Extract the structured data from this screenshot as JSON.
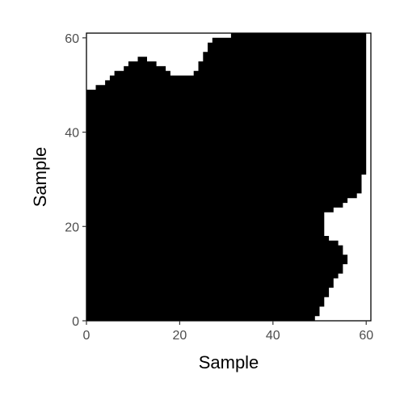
{
  "chart_data": {
    "type": "area",
    "description_of_shape": "filled black region bounded above and on the right",
    "xlabel": "Sample",
    "ylabel": "Sample",
    "xlim": [
      0,
      61
    ],
    "ylim": [
      0,
      61
    ],
    "x_ticks": [
      0,
      20,
      40,
      60
    ],
    "y_ticks": [
      0,
      20,
      40,
      60
    ],
    "x_tick_labels": [
      "0",
      "20",
      "40",
      "60"
    ],
    "y_tick_labels": [
      "0",
      "20",
      "40",
      "60"
    ],
    "grid": false,
    "fill_color": "#000000",
    "top_edge": [
      {
        "x": 0,
        "y": 49
      },
      {
        "x": 2,
        "y": 49
      },
      {
        "x": 2,
        "y": 50
      },
      {
        "x": 4,
        "y": 50
      },
      {
        "x": 4,
        "y": 51
      },
      {
        "x": 5,
        "y": 51
      },
      {
        "x": 5,
        "y": 52
      },
      {
        "x": 6,
        "y": 52
      },
      {
        "x": 6,
        "y": 53
      },
      {
        "x": 8,
        "y": 53
      },
      {
        "x": 8,
        "y": 54
      },
      {
        "x": 9,
        "y": 54
      },
      {
        "x": 9,
        "y": 55
      },
      {
        "x": 11,
        "y": 55
      },
      {
        "x": 11,
        "y": 56
      },
      {
        "x": 13,
        "y": 56
      },
      {
        "x": 13,
        "y": 55
      },
      {
        "x": 15,
        "y": 55
      },
      {
        "x": 15,
        "y": 54
      },
      {
        "x": 17,
        "y": 54
      },
      {
        "x": 17,
        "y": 53
      },
      {
        "x": 18,
        "y": 53
      },
      {
        "x": 18,
        "y": 52
      },
      {
        "x": 23,
        "y": 52
      },
      {
        "x": 23,
        "y": 53
      },
      {
        "x": 24,
        "y": 53
      },
      {
        "x": 24,
        "y": 55
      },
      {
        "x": 25,
        "y": 55
      },
      {
        "x": 25,
        "y": 57
      },
      {
        "x": 26,
        "y": 57
      },
      {
        "x": 26,
        "y": 59
      },
      {
        "x": 27,
        "y": 59
      },
      {
        "x": 27,
        "y": 60
      },
      {
        "x": 31,
        "y": 60
      },
      {
        "x": 31,
        "y": 61
      },
      {
        "x": 60,
        "y": 61
      }
    ],
    "right_edge": [
      {
        "x": 60,
        "y": 61
      },
      {
        "x": 60,
        "y": 31
      },
      {
        "x": 59,
        "y": 31
      },
      {
        "x": 59,
        "y": 27
      },
      {
        "x": 58,
        "y": 27
      },
      {
        "x": 58,
        "y": 26
      },
      {
        "x": 56,
        "y": 26
      },
      {
        "x": 56,
        "y": 25
      },
      {
        "x": 55,
        "y": 25
      },
      {
        "x": 55,
        "y": 24
      },
      {
        "x": 53,
        "y": 24
      },
      {
        "x": 53,
        "y": 23
      },
      {
        "x": 51,
        "y": 23
      },
      {
        "x": 51,
        "y": 18
      },
      {
        "x": 52,
        "y": 18
      },
      {
        "x": 52,
        "y": 17
      },
      {
        "x": 54,
        "y": 17
      },
      {
        "x": 54,
        "y": 16
      },
      {
        "x": 55,
        "y": 16
      },
      {
        "x": 55,
        "y": 14
      },
      {
        "x": 56,
        "y": 14
      },
      {
        "x": 56,
        "y": 12
      },
      {
        "x": 55,
        "y": 12
      },
      {
        "x": 55,
        "y": 10
      },
      {
        "x": 54,
        "y": 10
      },
      {
        "x": 54,
        "y": 9
      },
      {
        "x": 53,
        "y": 9
      },
      {
        "x": 53,
        "y": 7
      },
      {
        "x": 52,
        "y": 7
      },
      {
        "x": 52,
        "y": 5
      },
      {
        "x": 51,
        "y": 5
      },
      {
        "x": 51,
        "y": 3
      },
      {
        "x": 50,
        "y": 3
      },
      {
        "x": 50,
        "y": 1
      },
      {
        "x": 49,
        "y": 1
      },
      {
        "x": 49,
        "y": 0
      },
      {
        "x": 0,
        "y": 0
      }
    ]
  }
}
